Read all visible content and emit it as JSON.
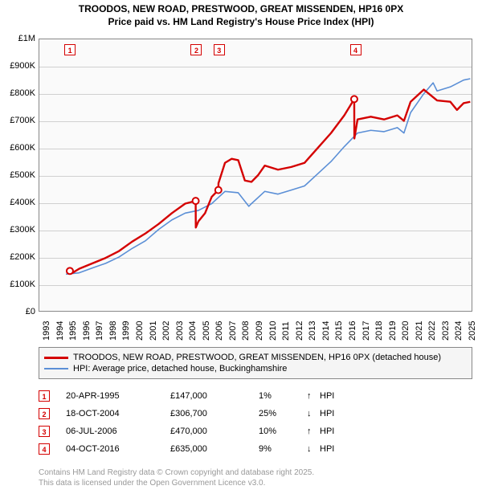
{
  "title_line1": "TROODOS, NEW ROAD, PRESTWOOD, GREAT MISSENDEN, HP16 0PX",
  "title_line2": "Price paid vs. HM Land Registry's House Price Index (HPI)",
  "chart": {
    "type": "line",
    "background_color": "#fafafa",
    "grid_color": "#d0d0d0",
    "border_color": "#888888",
    "x_years": [
      "1993",
      "1994",
      "1995",
      "1996",
      "1997",
      "1998",
      "1999",
      "2000",
      "2001",
      "2002",
      "2003",
      "2004",
      "2005",
      "2006",
      "2007",
      "2008",
      "2009",
      "2010",
      "2011",
      "2012",
      "2013",
      "2014",
      "2015",
      "2016",
      "2017",
      "2018",
      "2019",
      "2020",
      "2021",
      "2022",
      "2023",
      "2024",
      "2025"
    ],
    "xlim": [
      1993,
      2025.6
    ],
    "ylim": [
      0,
      1000000
    ],
    "ytick_step": 100000,
    "yticks": [
      "£0",
      "£100K",
      "£200K",
      "£300K",
      "£400K",
      "£500K",
      "£600K",
      "£700K",
      "£800K",
      "£900K",
      "£1M"
    ],
    "series": {
      "red": {
        "color": "#d40000",
        "width": 2.4,
        "label": "TROODOS, NEW ROAD, PRESTWOOD, GREAT MISSENDEN, HP16 0PX (detached house)",
        "points": [
          [
            1995.3,
            147000
          ],
          [
            1995.5,
            140000
          ],
          [
            1996,
            155000
          ],
          [
            1997,
            175000
          ],
          [
            1998,
            195000
          ],
          [
            1999,
            220000
          ],
          [
            2000,
            255000
          ],
          [
            2001,
            285000
          ],
          [
            2002,
            320000
          ],
          [
            2003,
            360000
          ],
          [
            2004,
            395000
          ],
          [
            2004.79,
            405000
          ],
          [
            2004.8,
            306700
          ],
          [
            2005,
            330000
          ],
          [
            2005.5,
            360000
          ],
          [
            2006,
            420000
          ],
          [
            2006.5,
            445000
          ],
          [
            2006.51,
            470000
          ],
          [
            2007,
            545000
          ],
          [
            2007.5,
            560000
          ],
          [
            2008,
            555000
          ],
          [
            2008.5,
            480000
          ],
          [
            2009,
            475000
          ],
          [
            2009.5,
            500000
          ],
          [
            2010,
            535000
          ],
          [
            2011,
            520000
          ],
          [
            2012,
            530000
          ],
          [
            2013,
            545000
          ],
          [
            2014,
            600000
          ],
          [
            2015,
            655000
          ],
          [
            2016,
            720000
          ],
          [
            2016.75,
            780000
          ],
          [
            2016.76,
            635000
          ],
          [
            2017,
            705000
          ],
          [
            2018,
            715000
          ],
          [
            2019,
            705000
          ],
          [
            2020,
            720000
          ],
          [
            2020.5,
            700000
          ],
          [
            2021,
            770000
          ],
          [
            2022,
            815000
          ],
          [
            2023,
            775000
          ],
          [
            2024,
            770000
          ],
          [
            2024.5,
            740000
          ],
          [
            2025,
            765000
          ],
          [
            2025.5,
            770000
          ]
        ]
      },
      "blue": {
        "color": "#5b8fd6",
        "width": 1.6,
        "label": "HPI: Average price, detached house, Buckinghamshire",
        "points": [
          [
            1995,
            135000
          ],
          [
            1996,
            140000
          ],
          [
            1997,
            158000
          ],
          [
            1998,
            175000
          ],
          [
            1999,
            198000
          ],
          [
            2000,
            230000
          ],
          [
            2001,
            258000
          ],
          [
            2002,
            300000
          ],
          [
            2003,
            335000
          ],
          [
            2004,
            360000
          ],
          [
            2005,
            370000
          ],
          [
            2006,
            395000
          ],
          [
            2007,
            440000
          ],
          [
            2008,
            435000
          ],
          [
            2008.8,
            385000
          ],
          [
            2009,
            395000
          ],
          [
            2010,
            440000
          ],
          [
            2011,
            430000
          ],
          [
            2012,
            445000
          ],
          [
            2013,
            460000
          ],
          [
            2014,
            505000
          ],
          [
            2015,
            550000
          ],
          [
            2016,
            605000
          ],
          [
            2017,
            655000
          ],
          [
            2018,
            665000
          ],
          [
            2019,
            660000
          ],
          [
            2020,
            675000
          ],
          [
            2020.5,
            655000
          ],
          [
            2021,
            730000
          ],
          [
            2022,
            800000
          ],
          [
            2022.7,
            840000
          ],
          [
            2023,
            810000
          ],
          [
            2024,
            825000
          ],
          [
            2025,
            850000
          ],
          [
            2025.5,
            855000
          ]
        ]
      }
    },
    "markers": [
      {
        "n": "1",
        "year": 1995.3
      },
      {
        "n": "2",
        "year": 2004.8
      },
      {
        "n": "3",
        "year": 2006.51
      },
      {
        "n": "4",
        "year": 2016.76
      }
    ]
  },
  "legend": {
    "border_color": "#888888",
    "bg_color": "#f5f5f5"
  },
  "sales": [
    {
      "n": "1",
      "date": "20-APR-1995",
      "price": "£147,000",
      "pct": "1%",
      "arrow": "↑",
      "label": "HPI"
    },
    {
      "n": "2",
      "date": "18-OCT-2004",
      "price": "£306,700",
      "pct": "25%",
      "arrow": "↓",
      "label": "HPI"
    },
    {
      "n": "3",
      "date": "06-JUL-2006",
      "price": "£470,000",
      "pct": "10%",
      "arrow": "↑",
      "label": "HPI"
    },
    {
      "n": "4",
      "date": "04-OCT-2016",
      "price": "£635,000",
      "pct": "9%",
      "arrow": "↓",
      "label": "HPI"
    }
  ],
  "footer_line1": "Contains HM Land Registry data © Crown copyright and database right 2025.",
  "footer_line2": "This data is licensed under the Open Government Licence v3.0.",
  "colors": {
    "marker_border": "#d40000",
    "marker_text": "#d40000",
    "footer_text": "#999999"
  }
}
